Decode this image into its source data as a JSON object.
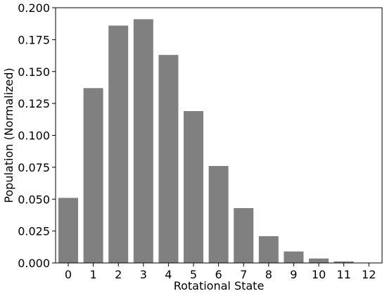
{
  "chart_data": {
    "type": "bar",
    "title": "",
    "xlabel": "Rotational State",
    "ylabel": "Population (Normalized)",
    "categories": [
      "0",
      "1",
      "2",
      "3",
      "4",
      "5",
      "6",
      "7",
      "8",
      "9",
      "10",
      "11",
      "12"
    ],
    "values": [
      0.051,
      0.137,
      0.186,
      0.191,
      0.163,
      0.119,
      0.076,
      0.043,
      0.021,
      0.009,
      0.0035,
      0.0012,
      0.0003
    ],
    "ylim": [
      0,
      0.2
    ],
    "yticks": [
      "0.000",
      "0.025",
      "0.050",
      "0.075",
      "0.100",
      "0.125",
      "0.150",
      "0.175",
      "0.200"
    ],
    "bar_color": "#808080",
    "grid": false,
    "legend": "none"
  }
}
